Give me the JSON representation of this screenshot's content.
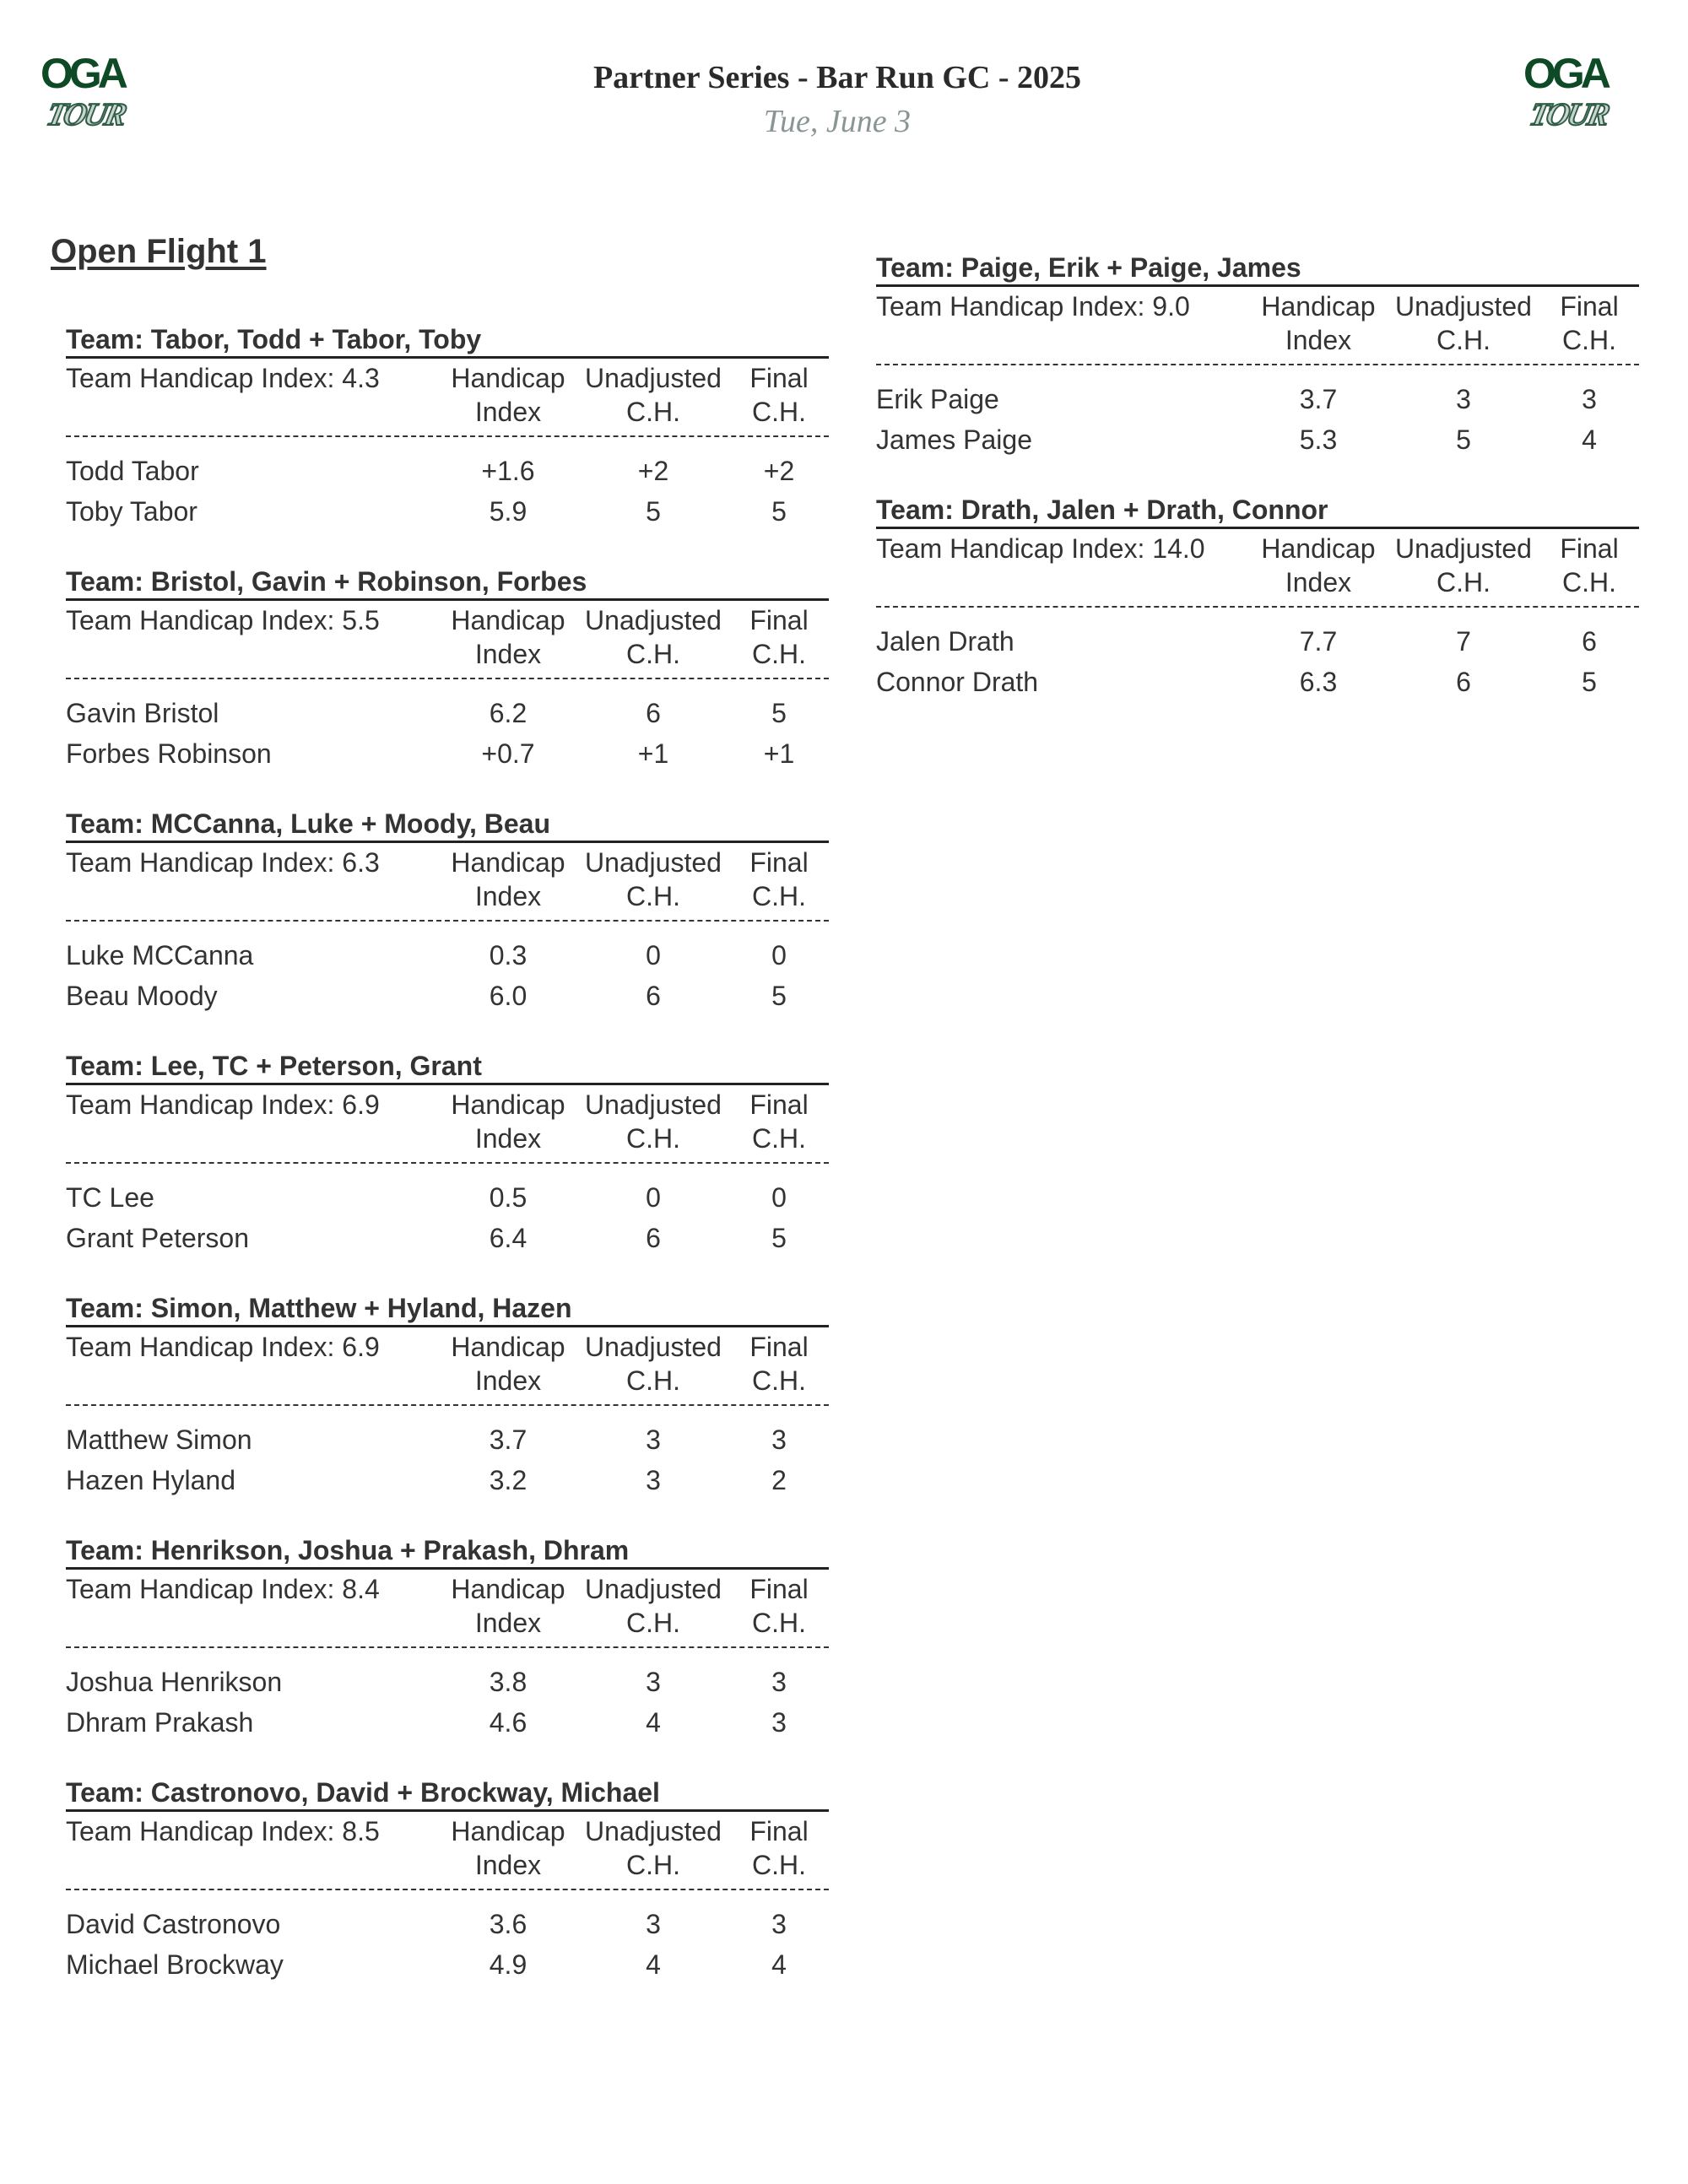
{
  "header": {
    "title": "Partner Series - Bar Run GC - 2025",
    "subtitle": "Tue, June 3",
    "logo_text": "OGA TOUR",
    "logo_colors": {
      "green": "#0f4a26",
      "silver": "#c9d3cf"
    }
  },
  "flight_title": "Open Flight 1",
  "column_headers": {
    "hi": [
      "Handicap",
      "Index"
    ],
    "unadj": [
      "Unadjusted",
      "C.H."
    ],
    "final": [
      "Final",
      "C.H."
    ]
  },
  "team_index_label": "Team Handicap Index:",
  "teams_left": [
    {
      "title": "Team: Tabor, Todd + Tabor, Toby",
      "index": "4.3",
      "players": [
        {
          "name": "Todd Tabor",
          "hi": "+1.6",
          "unadj": "+2",
          "final": "+2"
        },
        {
          "name": "Toby Tabor",
          "hi": "5.9",
          "unadj": "5",
          "final": "5"
        }
      ]
    },
    {
      "title": "Team: Bristol, Gavin + Robinson, Forbes",
      "index": "5.5",
      "players": [
        {
          "name": "Gavin Bristol",
          "hi": "6.2",
          "unadj": "6",
          "final": "5"
        },
        {
          "name": "Forbes Robinson",
          "hi": "+0.7",
          "unadj": "+1",
          "final": "+1"
        }
      ]
    },
    {
      "title": "Team: MCCanna, Luke + Moody, Beau",
      "index": "6.3",
      "players": [
        {
          "name": "Luke MCCanna",
          "hi": "0.3",
          "unadj": "0",
          "final": "0"
        },
        {
          "name": "Beau Moody",
          "hi": "6.0",
          "unadj": "6",
          "final": "5"
        }
      ]
    },
    {
      "title": "Team: Lee, TC + Peterson, Grant",
      "index": "6.9",
      "players": [
        {
          "name": "TC Lee",
          "hi": "0.5",
          "unadj": "0",
          "final": "0"
        },
        {
          "name": "Grant Peterson",
          "hi": "6.4",
          "unadj": "6",
          "final": "5"
        }
      ]
    },
    {
      "title": "Team: Simon, Matthew + Hyland, Hazen",
      "index": "6.9",
      "players": [
        {
          "name": "Matthew Simon",
          "hi": "3.7",
          "unadj": "3",
          "final": "3"
        },
        {
          "name": "Hazen Hyland",
          "hi": "3.2",
          "unadj": "3",
          "final": "2"
        }
      ]
    },
    {
      "title": "Team: Henrikson, Joshua + Prakash, Dhram",
      "index": "8.4",
      "players": [
        {
          "name": "Joshua Henrikson",
          "hi": "3.8",
          "unadj": "3",
          "final": "3"
        },
        {
          "name": "Dhram Prakash",
          "hi": "4.6",
          "unadj": "4",
          "final": "3"
        }
      ]
    },
    {
      "title": "Team: Castronovo, David + Brockway, Michael",
      "index": "8.5",
      "players": [
        {
          "name": "David Castronovo",
          "hi": "3.6",
          "unadj": "3",
          "final": "3"
        },
        {
          "name": "Michael Brockway",
          "hi": "4.9",
          "unadj": "4",
          "final": "4"
        }
      ]
    }
  ],
  "teams_right": [
    {
      "title": "Team: Paige, Erik + Paige, James",
      "index": "9.0",
      "players": [
        {
          "name": "Erik Paige",
          "hi": "3.7",
          "unadj": "3",
          "final": "3"
        },
        {
          "name": "James Paige",
          "hi": "5.3",
          "unadj": "5",
          "final": "4"
        }
      ]
    },
    {
      "title": "Team: Drath, Jalen + Drath, Connor",
      "index": "14.0",
      "players": [
        {
          "name": "Jalen Drath",
          "hi": "7.7",
          "unadj": "7",
          "final": "6"
        },
        {
          "name": "Connor Drath",
          "hi": "6.3",
          "unadj": "6",
          "final": "5"
        }
      ]
    }
  ]
}
